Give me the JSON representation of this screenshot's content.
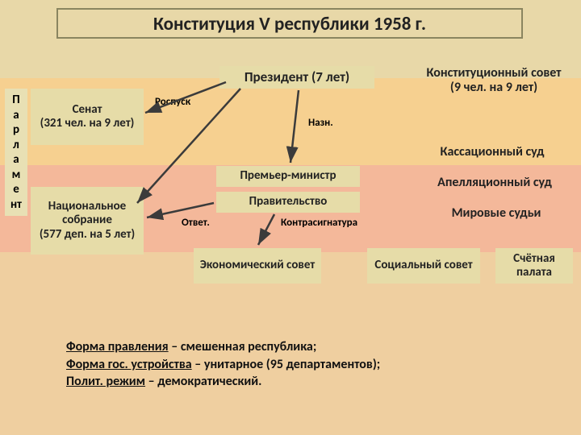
{
  "title": "Конституция V республики 1958 г.",
  "president": "Президент (7 лет)",
  "senate": "Сенат\n(321 чел. на 9 лет)",
  "assembly": "Национальное собрание\n(577 деп. на 5 лет)",
  "pm": "Премьер-министр",
  "government": "Правительство",
  "econ_council": "Экономический совет",
  "social_council": "Социальный совет",
  "audit": "Счётная палата",
  "const_council": "Конституционный совет\n(9 чел. на 9 лет)",
  "cassation": "Кассационный суд",
  "appeal": "Апелляционный суд",
  "magistrates": "Мировые судьи",
  "label_dissolve": "Роспуск",
  "label_appoint": "Назн.",
  "label_answer": "Ответ.",
  "label_countersign": "Контрасигнатура",
  "parliament": [
    "П",
    "а",
    "р",
    "л",
    "а",
    "м",
    "е",
    "нт"
  ],
  "notes": {
    "l1a": "Форма правления",
    "l1b": " – смешенная республика;",
    "l2a": "Форма гос. устройства",
    "l2b": " – унитарное (95 департаментов);",
    "l3a": "Полит. режим",
    "l3b": " – демократический."
  },
  "colors": {
    "box_bg": "#e6dca8",
    "title_border": "#8a8560",
    "arrow": "#3b3b3b"
  }
}
